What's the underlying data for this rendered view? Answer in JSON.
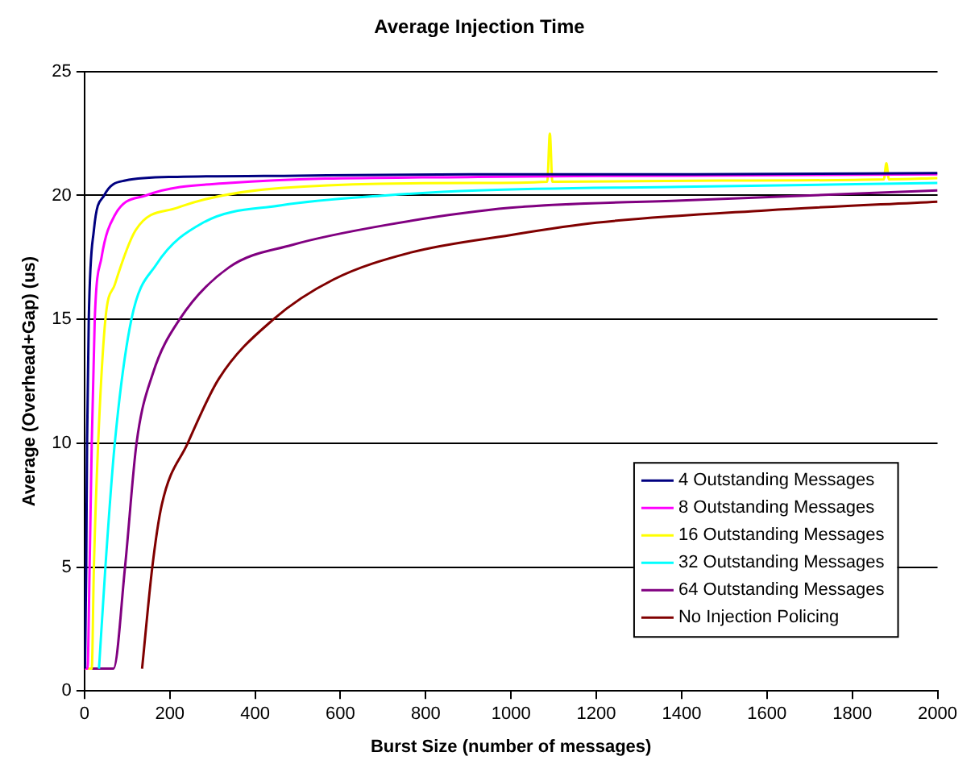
{
  "chart_data": {
    "type": "line",
    "title": "Average Injection Time",
    "xlabel": "Burst Size (number of messages)",
    "ylabel": "Average (Overhead+Gap) (us)",
    "xlim": [
      0,
      2000
    ],
    "xticks": [
      0,
      200,
      400,
      600,
      800,
      1000,
      1200,
      1400,
      1600,
      1800,
      2000
    ],
    "ylim": [
      0,
      25
    ],
    "yticks": [
      0,
      5,
      10,
      15,
      20,
      25
    ],
    "grid": "y",
    "legend": "bottom right",
    "marker": "none",
    "line_style": "solid",
    "series": [
      {
        "name": "4 Outstanding Messages",
        "color": "#000080",
        "x": [
          1,
          4,
          6,
          10,
          22,
          46,
          95,
          217,
          500,
          923,
          1400,
          2000
        ],
        "values": [
          0.9,
          5,
          10,
          15,
          18.6,
          20,
          20.6,
          20.75,
          20.8,
          20.85,
          20.85,
          20.9
        ]
      },
      {
        "name": "8 Outstanding Messages",
        "color": "#ff00ff",
        "x": [
          1,
          7,
          12,
          17,
          24,
          40,
          71,
          144,
          339,
          923,
          1400,
          2000
        ],
        "values": [
          0.9,
          0.9,
          5,
          10,
          15,
          17.5,
          19.2,
          20,
          20.5,
          20.75,
          20.8,
          20.85
        ]
      },
      {
        "name": "16 Outstanding Messages",
        "color": "#ffff00",
        "x": [
          1,
          17,
          22,
          32,
          49,
          71,
          120,
          217,
          461,
          923,
          1085,
          1091,
          1097,
          1500,
          1874,
          1880,
          1886,
          2000
        ],
        "values": [
          0.9,
          0.9,
          5,
          10,
          15,
          16.4,
          18.6,
          19.5,
          20.3,
          20.5,
          20.55,
          22.5,
          20.55,
          20.6,
          20.65,
          21.3,
          20.65,
          20.7
        ]
      },
      {
        "name": "32 Outstanding Messages",
        "color": "#00ffff",
        "x": [
          34,
          49,
          71,
          110,
          168,
          278,
          461,
          705,
          923,
          1400,
          2000
        ],
        "values": [
          0.9,
          5,
          10,
          15,
          17.2,
          18.9,
          19.6,
          20,
          20.2,
          20.35,
          20.5
        ]
      },
      {
        "name": "64 Outstanding Messages",
        "color": "#800080",
        "x": [
          1,
          68,
          95,
          122,
          160,
          223,
          339,
          486,
          705,
          998,
          1400,
          2000
        ],
        "values": [
          0.9,
          0.9,
          5,
          10,
          12.8,
          15,
          17.1,
          18,
          18.8,
          19.5,
          19.8,
          20.2
        ]
      },
      {
        "name": "No Injection Policing",
        "color": "#800000",
        "x": [
          135,
          159,
          181,
          242,
          315,
          443,
          583,
          766,
          998,
          1200,
          1600,
          2000
        ],
        "values": [
          0.9,
          5,
          7.5,
          10,
          12.6,
          15,
          16.6,
          17.7,
          18.4,
          18.9,
          19.4,
          19.75
        ]
      }
    ]
  }
}
